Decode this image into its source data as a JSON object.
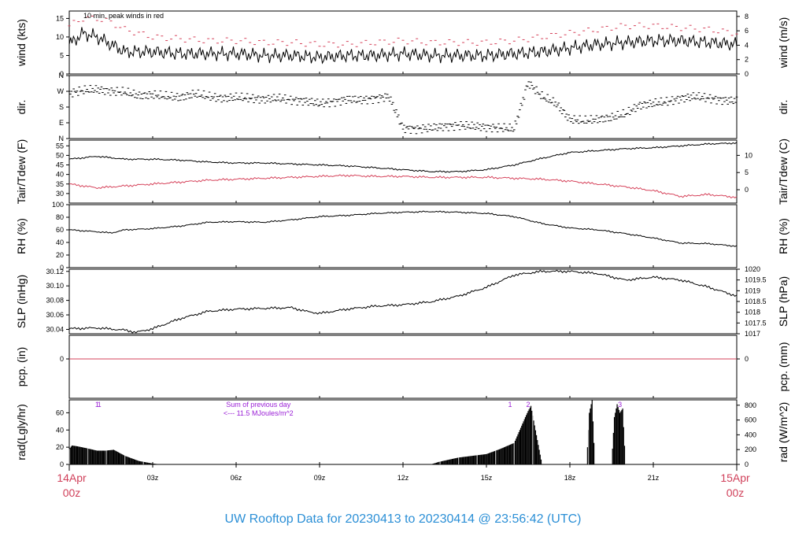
{
  "title": "UW Rooftop Data for 20230413  to  20230414 @ 23:56:42  (UTC)",
  "colors": {
    "line": "#000000",
    "red": "#d6435b",
    "purple": "#9a1fd6",
    "title": "#2b8fd6",
    "fill": "#000000",
    "light_bar": "#aaaaaa"
  },
  "time_axis": {
    "start_label": [
      "14Apr",
      "00z"
    ],
    "end_label": [
      "15Apr",
      "00z"
    ],
    "ticks": [
      {
        "hour": 3,
        "label": "03z"
      },
      {
        "hour": 6,
        "label": "06z"
      },
      {
        "hour": 9,
        "label": "09z"
      },
      {
        "hour": 12,
        "label": "12z"
      },
      {
        "hour": 15,
        "label": "15z"
      },
      {
        "hour": 18,
        "label": "18z"
      },
      {
        "hour": 21,
        "label": "21z"
      }
    ]
  },
  "chart_data": [
    {
      "type": "line",
      "panel": "wind",
      "ylabel": "wind (kts)",
      "ylabel_right": "wind (m/s)",
      "annotation": "10 min. peak winds in red",
      "ylim": [
        0,
        17
      ],
      "yticks": [
        0,
        5,
        10,
        15
      ],
      "right_ylim": [
        0,
        8.75
      ],
      "right_yticks": [
        0,
        2,
        4,
        6,
        8
      ],
      "series": [
        {
          "x": [
            0,
            0.5,
            1,
            1.5,
            2,
            3,
            4,
            5,
            6,
            7,
            8,
            9,
            10,
            11,
            12,
            13,
            14,
            15,
            16,
            17,
            18,
            19,
            20,
            21,
            22,
            23,
            24
          ],
          "y": [
            8,
            11,
            10,
            8,
            6,
            6,
            5.5,
            5.5,
            5.5,
            5,
            5,
            4.5,
            5,
            5,
            5.5,
            5,
            5,
            5,
            5.5,
            6,
            7,
            8,
            8.5,
            9,
            9,
            8.5,
            8
          ]
        },
        {
          "x": [
            0,
            0.5,
            1,
            1.5,
            2,
            3,
            4,
            5,
            6,
            7,
            8,
            9,
            10,
            11,
            12,
            13,
            14,
            15,
            16,
            17,
            18,
            19,
            20,
            21,
            22,
            23,
            24
          ],
          "y": [
            13,
            15,
            15,
            14,
            12,
            10,
            9.5,
            9,
            9,
            8.5,
            8.5,
            8,
            8,
            8.5,
            9,
            8.5,
            8.5,
            8.5,
            9,
            10,
            11,
            12,
            13,
            13,
            12.5,
            12,
            11
          ]
        }
      ]
    },
    {
      "type": "scatter",
      "panel": "dir",
      "ylabel": "dir.",
      "ylabel_right": "dir.",
      "ylim": [
        0,
        360
      ],
      "yticks": [
        0,
        90,
        180,
        270,
        360
      ],
      "ytick_labels": [
        "N",
        "E",
        "S",
        "W",
        "N"
      ],
      "series": [
        {
          "x": [
            0,
            0.5,
            1,
            1.5,
            2,
            2.5,
            3,
            3.5,
            4,
            4.5,
            5,
            5.5,
            6,
            6.5,
            7,
            7.5,
            8,
            8.5,
            9,
            9.5,
            10,
            10.5,
            11,
            11.5,
            12,
            12.5,
            13,
            13.5,
            14,
            14.5,
            15,
            15.5,
            16,
            16.5,
            17,
            17.5,
            18,
            18.5,
            19,
            19.5,
            20,
            20.5,
            21,
            21.5,
            22,
            22.5,
            23,
            23.5,
            24
          ],
          "y": [
            260,
            275,
            280,
            270,
            265,
            245,
            250,
            240,
            235,
            255,
            240,
            230,
            235,
            230,
            225,
            230,
            220,
            215,
            200,
            210,
            225,
            220,
            230,
            240,
            60,
            55,
            60,
            70,
            75,
            70,
            65,
            60,
            55,
            320,
            240,
            200,
            110,
            100,
            110,
            120,
            140,
            190,
            200,
            210,
            230,
            240,
            230,
            220,
            215
          ]
        }
      ]
    },
    {
      "type": "line",
      "panel": "temp",
      "ylabel": "Tair/Tdew (F)",
      "ylabel_right": "Tair/Tdew (C)",
      "ylim": [
        25,
        58
      ],
      "yticks": [
        30,
        35,
        40,
        45,
        50,
        55
      ],
      "right_ylim": [
        -3.89,
        14.44
      ],
      "right_yticks": [
        0,
        5,
        10
      ],
      "series": [
        {
          "x": [
            0,
            1,
            2,
            3,
            4,
            5,
            6,
            7,
            8,
            9,
            10,
            11,
            12,
            13,
            14,
            15,
            16,
            17,
            18,
            19,
            20,
            21,
            22,
            23,
            24
          ],
          "y": [
            48,
            49.5,
            48,
            48,
            47.5,
            46.5,
            46,
            46,
            45.5,
            45,
            44.5,
            43.5,
            42.5,
            41.5,
            41.5,
            42.5,
            45,
            48.5,
            51.5,
            52.5,
            53.5,
            54,
            55,
            56,
            56.5
          ]
        },
        {
          "x": [
            0,
            1,
            2,
            3,
            4,
            5,
            6,
            7,
            8,
            9,
            10,
            11,
            12,
            13,
            14,
            15,
            16,
            17,
            18,
            19,
            20,
            21,
            22,
            23,
            24
          ],
          "y": [
            35,
            33,
            34,
            35,
            36,
            37,
            37.5,
            38,
            38.5,
            39,
            39.5,
            39,
            39,
            38.5,
            38.5,
            38.5,
            38,
            37.5,
            36.5,
            35,
            33.5,
            31.5,
            28.5,
            29.5,
            28
          ]
        }
      ]
    },
    {
      "type": "line",
      "panel": "rh",
      "ylabel": "RH (%)",
      "ylabel_right": "RH (%)",
      "ylim": [
        0,
        100
      ],
      "yticks": [
        0,
        20,
        40,
        60,
        80,
        100
      ],
      "series": [
        {
          "x": [
            0,
            1,
            1.5,
            2,
            3,
            4,
            5,
            6,
            7,
            8,
            9,
            10,
            11,
            12,
            13,
            14,
            15,
            16,
            17,
            18,
            19,
            20,
            21,
            22,
            23,
            24
          ],
          "y": [
            60,
            57,
            55,
            60,
            62,
            66,
            72,
            73,
            72,
            76,
            81,
            83,
            86,
            88,
            89,
            88,
            86,
            81,
            70,
            63,
            60,
            54,
            47,
            39,
            38,
            34
          ]
        }
      ]
    },
    {
      "type": "line",
      "panel": "slp",
      "ylabel": "SLP (inHg)",
      "ylabel_right": "SLP (hPa)",
      "ylim": [
        30.034,
        30.123
      ],
      "yticks": [
        30.04,
        30.06,
        30.08,
        30.1,
        30.12
      ],
      "ytick_labels": [
        "30.04",
        "30.06",
        "30.08",
        "30.10",
        "30.12"
      ],
      "right_ylim": [
        1017,
        1020
      ],
      "right_yticks": [
        1017,
        1017.5,
        1018,
        1018.5,
        1019,
        1019.5,
        1020
      ],
      "right_ytick_labels": [
        "1017",
        "1017.5",
        "1018",
        "1018.5",
        "1019",
        "1019.5",
        "1020"
      ],
      "series": [
        {
          "x": [
            0,
            1,
            2,
            2.4,
            3,
            4,
            5,
            6,
            7,
            8,
            8.5,
            9,
            10,
            11,
            12,
            13,
            14,
            15,
            16,
            17,
            18,
            19,
            20,
            21,
            22,
            23,
            24
          ],
          "y": [
            30.041,
            30.042,
            30.039,
            30.036,
            30.041,
            30.055,
            30.065,
            30.068,
            30.069,
            30.07,
            30.065,
            30.062,
            30.068,
            30.072,
            30.074,
            30.078,
            30.086,
            30.098,
            30.115,
            30.12,
            30.12,
            30.117,
            30.108,
            30.112,
            30.108,
            30.098,
            30.086
          ]
        }
      ]
    },
    {
      "type": "line",
      "panel": "pcp",
      "ylabel": "pcp. (in)",
      "ylabel_right": "pcp. (mm)",
      "ylim": [
        -0.1,
        0.06
      ],
      "yticks": [
        0
      ],
      "right_yticks": [
        0
      ],
      "series": [
        {
          "x": [
            0,
            24
          ],
          "y": [
            0,
            0
          ]
        }
      ]
    },
    {
      "type": "area",
      "panel": "rad",
      "ylabel": "rad(Lgly/hr)",
      "ylabel_right": "rad (W/m^2)",
      "annotations": [
        {
          "x": 1.0,
          "text": "1"
        },
        {
          "x": 1.08,
          "text": "1"
        },
        {
          "x": 15.85,
          "text": "1"
        },
        {
          "x": 16.5,
          "text": "2"
        },
        {
          "x": 19.8,
          "text": "3"
        }
      ],
      "note_line1": "Sum of previous day",
      "note_line2": "<--- 11.5 MJoules/m^2",
      "ylim": [
        0,
        75
      ],
      "yticks": [
        0,
        20,
        40,
        60
      ],
      "right_ylim": [
        0,
        872
      ],
      "right_yticks": [
        0,
        200,
        400,
        600,
        800
      ],
      "series": [
        {
          "x": [
            0,
            0.1,
            0.3,
            0.6,
            1,
            1.3,
            1.6,
            2,
            2.5,
            3,
            3.3,
            13,
            13.3,
            14,
            14.5,
            15,
            15.5,
            16,
            16.2,
            16.4,
            16.5,
            16.6,
            17,
            18.6,
            18.7,
            18.8,
            18.9,
            19.5,
            19.6,
            19.7,
            19.8,
            19.9,
            20,
            24
          ],
          "y": [
            18,
            22,
            21,
            19,
            16,
            16,
            17,
            10,
            4,
            1,
            0,
            0,
            3,
            8,
            10,
            12,
            18,
            25,
            40,
            55,
            62,
            68,
            0,
            0,
            60,
            75,
            0,
            0,
            55,
            70,
            60,
            65,
            0,
            0
          ]
        }
      ]
    }
  ]
}
